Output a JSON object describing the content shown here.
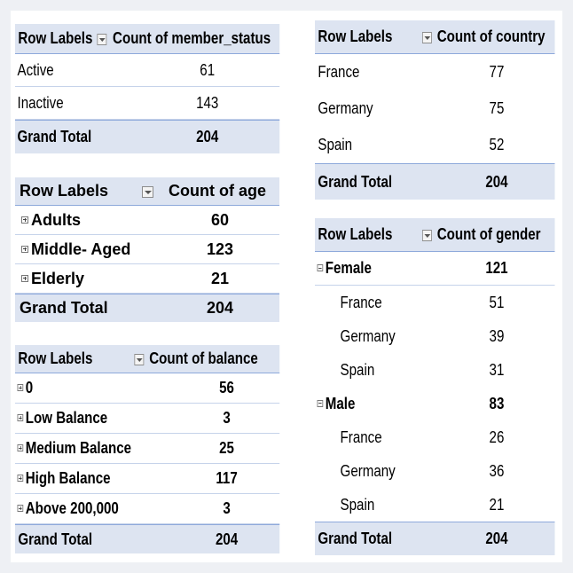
{
  "member_status": {
    "header_label": "Row Labels",
    "header_value": "Count of member_status",
    "rows": [
      {
        "label": "Active",
        "value": "61"
      },
      {
        "label": "Inactive",
        "value": "143"
      }
    ],
    "total_label": "Grand Total",
    "total_value": "204"
  },
  "age": {
    "header_label": "Row Labels",
    "header_value": "Count of age",
    "rows": [
      {
        "label": "Adults",
        "value": "60"
      },
      {
        "label": "Middle- Aged",
        "value": "123"
      },
      {
        "label": "Elderly",
        "value": "21"
      }
    ],
    "total_label": "Grand Total",
    "total_value": "204"
  },
  "balance": {
    "header_label": "Row Labels",
    "header_value": "Count of balance",
    "rows": [
      {
        "label": "0",
        "value": "56"
      },
      {
        "label": "Low Balance",
        "value": "3"
      },
      {
        "label": "Medium Balance",
        "value": "25"
      },
      {
        "label": "High Balance",
        "value": "117"
      },
      {
        "label": "Above 200,000",
        "value": "3"
      }
    ],
    "total_label": "Grand Total",
    "total_value": "204"
  },
  "country": {
    "header_label": "Row Labels",
    "header_value": "Count of country",
    "rows": [
      {
        "label": "France",
        "value": "77"
      },
      {
        "label": "Germany",
        "value": "75"
      },
      {
        "label": "Spain",
        "value": "52"
      }
    ],
    "total_label": "Grand Total",
    "total_value": "204"
  },
  "gender": {
    "header_label": "Row Labels",
    "header_value": "Count of gender",
    "groups": [
      {
        "label": "Female",
        "value": "121",
        "children": [
          {
            "label": "France",
            "value": "51"
          },
          {
            "label": "Germany",
            "value": "39"
          },
          {
            "label": "Spain",
            "value": "31"
          }
        ]
      },
      {
        "label": "Male",
        "value": "83",
        "children": [
          {
            "label": "France",
            "value": "26"
          },
          {
            "label": "Germany",
            "value": "36"
          },
          {
            "label": "Spain",
            "value": "21"
          }
        ]
      }
    ],
    "total_label": "Grand Total",
    "total_value": "204"
  }
}
